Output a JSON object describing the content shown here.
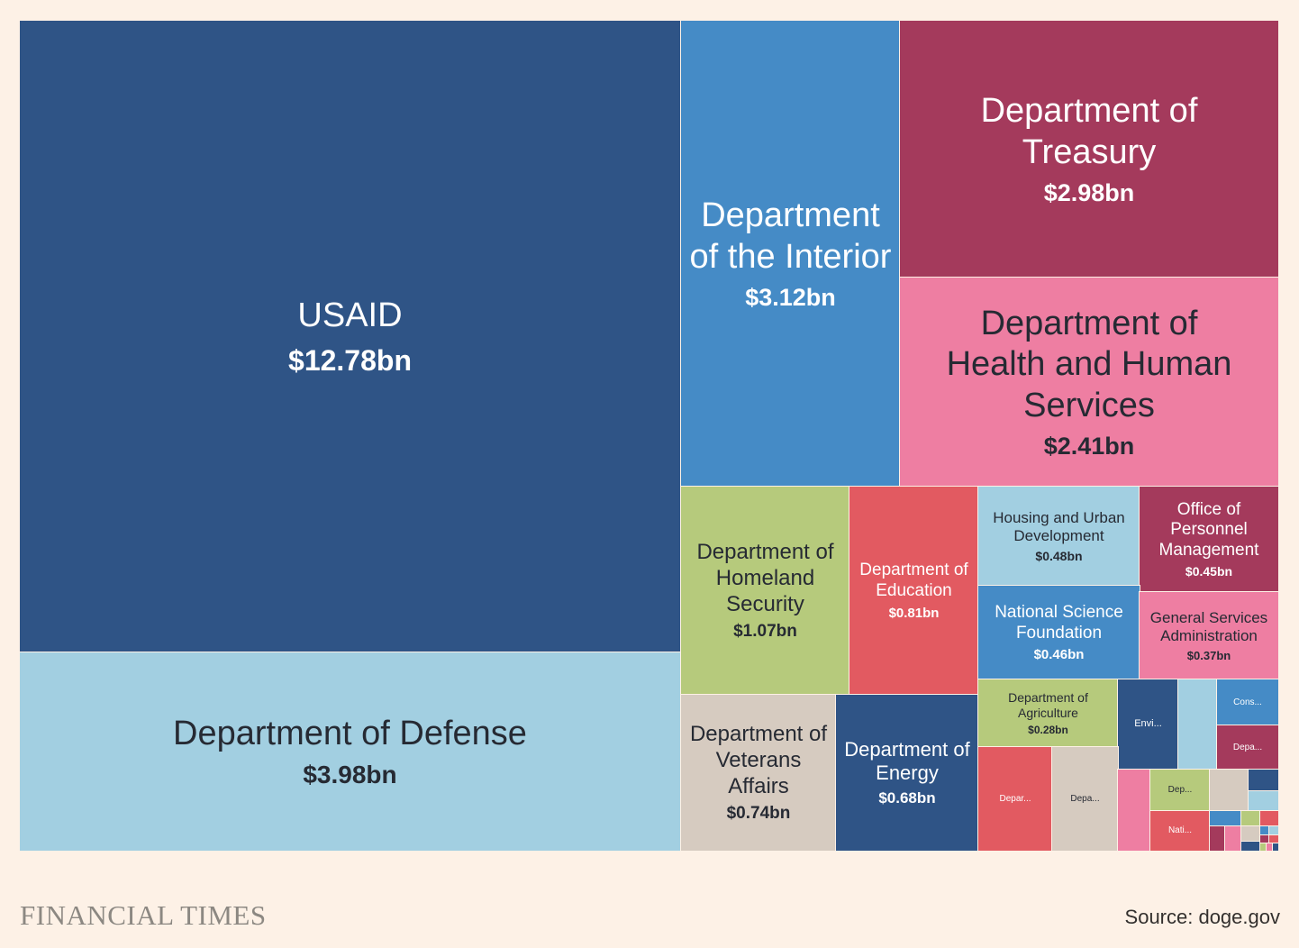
{
  "chart_data": {
    "type": "treemap",
    "unit": "bn",
    "items": [
      {
        "name": "USAID",
        "label": "$12.78bn",
        "value": 12.78,
        "color": "#2f5486"
      },
      {
        "name": "Department of Defense",
        "label": "$3.98bn",
        "value": 3.98,
        "color": "#a2cfe1"
      },
      {
        "name": "Department of the Interior",
        "label": "$3.12bn",
        "value": 3.12,
        "color": "#458bc6"
      },
      {
        "name": "Department of Treasury",
        "label": "$2.98bn",
        "value": 2.98,
        "color": "#a43a5c"
      },
      {
        "name": "Department of Health and Human Services",
        "label": "$2.41bn",
        "value": 2.41,
        "color": "#ee7ea2"
      },
      {
        "name": "Department of Homeland Security",
        "label": "$1.07bn",
        "value": 1.07,
        "color": "#b6ca7c"
      },
      {
        "name": "Department of Education",
        "label": "$0.81bn",
        "value": 0.81,
        "color": "#e25a61"
      },
      {
        "name": "Housing and Urban Development",
        "label": "$0.48bn",
        "value": 0.48,
        "color": "#a2cfe1"
      },
      {
        "name": "Office of Personnel Management",
        "label": "$0.45bn",
        "value": 0.45,
        "color": "#a43a5c"
      },
      {
        "name": "National Science Foundation",
        "label": "$0.46bn",
        "value": 0.46,
        "color": "#458bc6"
      },
      {
        "name": "General Services Administration",
        "label": "$0.37bn",
        "value": 0.37,
        "color": "#ee7ea2"
      },
      {
        "name": "Department of Veterans Affairs",
        "label": "$0.74bn",
        "value": 0.74,
        "color": "#d6cbc0"
      },
      {
        "name": "Department of Energy",
        "label": "$0.68bn",
        "value": 0.68,
        "color": "#2f5486"
      },
      {
        "name": "Department of Agriculture",
        "label": "$0.28bn",
        "value": 0.28,
        "color": "#b6ca7c"
      },
      {
        "name": "Envi...",
        "label": "",
        "color": "#2f5486"
      },
      {
        "name": "",
        "label": "",
        "color": "#a2cfe1"
      },
      {
        "name": "Cons...",
        "label": "",
        "color": "#458bc6"
      },
      {
        "name": "Depa...",
        "label": "",
        "color": "#a43a5c"
      },
      {
        "name": "Depar...",
        "label": "",
        "color": "#e25a61"
      },
      {
        "name": "Depa...",
        "label": "",
        "color": "#d6cbc0"
      },
      {
        "name": "",
        "label": "",
        "color": "#ee7ea2"
      },
      {
        "name": "Dep...",
        "label": "",
        "color": "#b6ca7c"
      },
      {
        "name": "Nati...",
        "label": "",
        "color": "#e25a61"
      },
      {
        "name": "",
        "label": "",
        "color": "#d6cbc0"
      },
      {
        "name": "",
        "label": "",
        "color": "#2f5486"
      },
      {
        "name": "",
        "label": "",
        "color": "#a2cfe1"
      }
    ]
  },
  "footer": {
    "logo": "FINANCIAL TIMES",
    "source": "Source: doge.gov"
  }
}
